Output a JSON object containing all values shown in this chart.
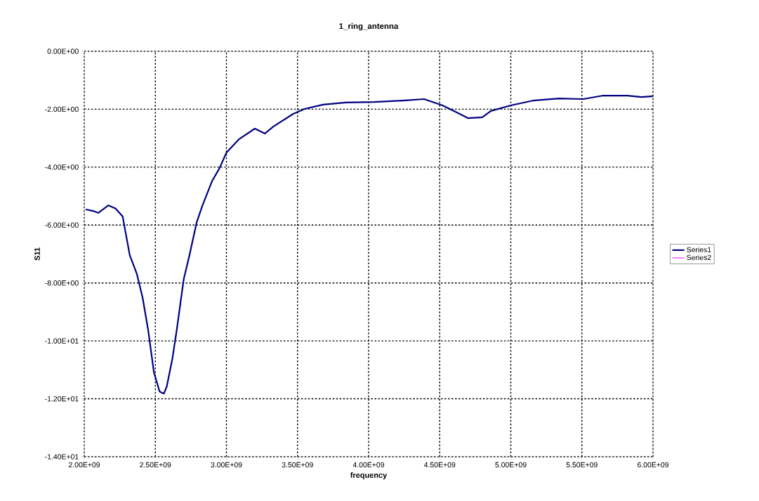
{
  "chart_data": {
    "type": "line",
    "title": "1_ring_antenna",
    "xlabel": "frequency",
    "ylabel": "S11",
    "x": [
      2010000000.0,
      2060000000.0,
      2100000000.0,
      2170000000.0,
      2220000000.0,
      2270000000.0,
      2290000000.0,
      2320000000.0,
      2370000000.0,
      2410000000.0,
      2450000000.0,
      2490000000.0,
      2530000000.0,
      2560000000.0,
      2580000000.0,
      2620000000.0,
      2650000000.0,
      2700000000.0,
      2740000000.0,
      2790000000.0,
      2830000000.0,
      2900000000.0,
      2950000000.0,
      3000000000.0,
      3090000000.0,
      3200000000.0,
      3270000000.0,
      3330000000.0,
      3470000000.0,
      3550000000.0,
      3680000000.0,
      3840000000.0,
      4040000000.0,
      4240000000.0,
      4390000000.0,
      4520000000.0,
      4620000000.0,
      4700000000.0,
      4800000000.0,
      4860000000.0,
      5000000000.0,
      5160000000.0,
      5340000000.0,
      5510000000.0,
      5650000000.0,
      5820000000.0,
      5920000000.0,
      6000000000.0
    ],
    "series": [
      {
        "name": "Series1",
        "color": "#000080",
        "values": [
          -5.46,
          -5.51,
          -5.58,
          -5.32,
          -5.43,
          -5.7,
          -6.24,
          -7.04,
          -7.69,
          -8.5,
          -9.64,
          -11.09,
          -11.75,
          -11.82,
          -11.58,
          -10.61,
          -9.64,
          -7.86,
          -7.04,
          -5.92,
          -5.34,
          -4.47,
          -4.05,
          -3.5,
          -3.03,
          -2.67,
          -2.84,
          -2.6,
          -2.16,
          -1.99,
          -1.84,
          -1.77,
          -1.75,
          -1.7,
          -1.65,
          -1.87,
          -2.11,
          -2.31,
          -2.28,
          -2.06,
          -1.87,
          -1.7,
          -1.63,
          -1.65,
          -1.53,
          -1.53,
          -1.58,
          -1.55
        ]
      },
      {
        "name": "Series2",
        "color": "#ff00ff",
        "values": [
          null,
          null,
          null,
          null,
          null,
          null,
          null,
          null,
          null,
          null,
          null,
          null,
          null,
          null,
          null,
          null,
          null,
          null,
          null,
          null,
          null,
          null,
          null,
          null,
          null,
          null,
          null,
          null,
          null,
          null,
          null,
          null,
          null,
          null,
          null,
          null,
          null,
          null,
          null,
          null,
          null,
          null,
          null,
          null,
          null,
          null,
          null,
          null
        ]
      }
    ],
    "xlim": [
      2000000000.0,
      6000000000.0
    ],
    "xticks": [
      {
        "value": 2000000000.0,
        "label": "2.00E+09"
      },
      {
        "value": 2500000000.0,
        "label": "2.50E+09"
      },
      {
        "value": 3000000000.0,
        "label": "3.00E+09"
      },
      {
        "value": 3500000000.0,
        "label": "3.50E+09"
      },
      {
        "value": 4000000000.0,
        "label": "4.00E+09"
      },
      {
        "value": 4500000000.0,
        "label": "4.50E+09"
      },
      {
        "value": 5000000000.0,
        "label": "5.00E+09"
      },
      {
        "value": 5500000000.0,
        "label": "5.50E+09"
      },
      {
        "value": 6000000000.0,
        "label": "6.00E+09"
      }
    ],
    "ylim": [
      -14,
      0
    ],
    "yticks": [
      {
        "value": -14,
        "label": "-1.40E+01"
      },
      {
        "value": -12,
        "label": "-1.20E+01"
      },
      {
        "value": -10,
        "label": "-1.00E+01"
      },
      {
        "value": -8,
        "label": "-8.00E+00"
      },
      {
        "value": -6,
        "label": "-6.00E+00"
      },
      {
        "value": -4,
        "label": "-4.00E+00"
      },
      {
        "value": -2,
        "label": "-2.00E+00"
      },
      {
        "value": 0,
        "label": "0.00E+00"
      }
    ],
    "grid": true,
    "legend": "right",
    "marker": "none",
    "line_style": "solid"
  }
}
